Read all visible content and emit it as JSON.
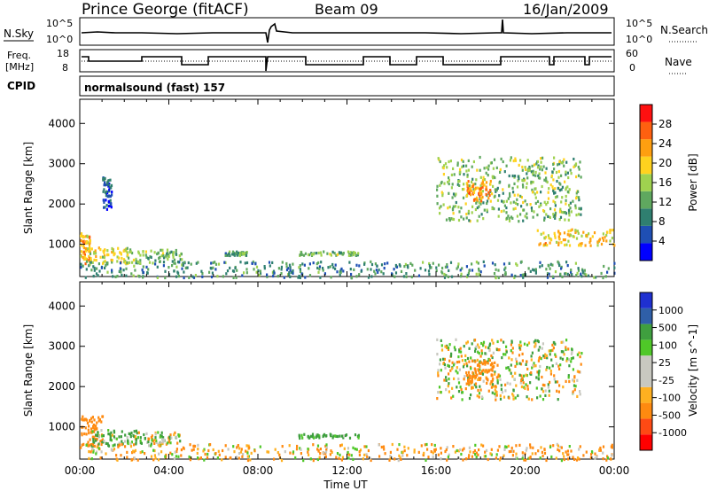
{
  "header": {
    "title": "Prince George (fitACF)",
    "beam": "Beam 09",
    "date": "16/Jan/2009"
  },
  "top_panels": {
    "nsky_label": "N.Sky",
    "nsky_ticks": [
      "10^5",
      "10^0"
    ],
    "nsearch_label": "N.Search",
    "nsearch_ticks": [
      "10^5",
      "10^0"
    ],
    "freq_label_1": "Freq.",
    "freq_label_2": "[MHz]",
    "freq_ticks": [
      "18",
      "8"
    ],
    "nave_label": "Nave",
    "nave_ticks": [
      "60",
      "0"
    ],
    "cpid_label": "CPID",
    "cpid_text": "normalsound (fast) 157"
  },
  "colors": {
    "power_scale": [
      "#0000ff",
      "#1f4fb4",
      "#2f7f70",
      "#5fa85f",
      "#9fd24f",
      "#ffd21f",
      "#ff9f10",
      "#ff6010",
      "#ff1010"
    ],
    "velocity_scale": [
      "#ff0000",
      "#ff4a14",
      "#ff8a10",
      "#ffb020",
      "#c8c8c0",
      "#c8c8c0",
      "#4fc828",
      "#3f9f3f",
      "#2f5fa8",
      "#1f30d0"
    ]
  },
  "chart_data": [
    {
      "type": "heatmap",
      "panel": "power",
      "ylabel": "Slant Range [km]",
      "yticks": [
        "1000",
        "2000",
        "3000",
        "4000"
      ],
      "ylim": [
        200,
        4600
      ],
      "xlim": [
        0,
        24
      ],
      "colorbar_label": "Power [dB]",
      "colorbar_ticks": [
        "4",
        "8",
        "12",
        "16",
        "20",
        "24",
        "28"
      ],
      "colorbar_range": [
        0,
        32
      ],
      "regions": [
        {
          "t0": 0.0,
          "t1": 0.45,
          "r0": 550,
          "r1": 1300,
          "value": 22
        },
        {
          "t0": 0.2,
          "t1": 2.2,
          "r0": 550,
          "r1": 950,
          "value": 18
        },
        {
          "t0": 2.2,
          "t1": 4.6,
          "r0": 550,
          "r1": 900,
          "value": 14
        },
        {
          "t0": 1.0,
          "t1": 1.4,
          "r0": 1900,
          "r1": 2700,
          "value": 6
        },
        {
          "t0": 6.5,
          "t1": 7.5,
          "r0": 750,
          "r1": 850,
          "value": 12
        },
        {
          "t0": 9.8,
          "t1": 12.5,
          "r0": 750,
          "r1": 850,
          "value": 14
        },
        {
          "t0": 16.0,
          "t1": 22.5,
          "r0": 1600,
          "r1": 3200,
          "value": 14
        },
        {
          "t0": 17.3,
          "t1": 18.5,
          "r0": 2100,
          "r1": 2600,
          "value": 24
        },
        {
          "t0": 20.5,
          "t1": 24.0,
          "r0": 1000,
          "r1": 1400,
          "value": 20
        },
        {
          "t0": 0.0,
          "t1": 24.0,
          "r0": 200,
          "r1": 600,
          "value": 10
        }
      ]
    },
    {
      "type": "heatmap",
      "panel": "velocity",
      "ylabel": "Slant Range [km]",
      "yticks": [
        "1000",
        "2000",
        "3000",
        "4000"
      ],
      "ylim": [
        200,
        4600
      ],
      "xlim": [
        0,
        24
      ],
      "xticks": [
        "00:00",
        "04:00",
        "08:00",
        "12:00",
        "16:00",
        "20:00",
        "00:00"
      ],
      "xlabel": "Time UT",
      "colorbar_label": "Velocity [m s^-1]",
      "colorbar_ticks": [
        "1000",
        "500",
        "100",
        "25",
        "-25",
        "-100",
        "-500",
        "-1000"
      ],
      "regions": [
        {
          "t0": 0.0,
          "t1": 1.0,
          "r0": 550,
          "r1": 1300,
          "value": -300
        },
        {
          "t0": 0.5,
          "t1": 2.5,
          "r0": 550,
          "r1": 950,
          "value": 150
        },
        {
          "t0": 2.5,
          "t1": 4.5,
          "r0": 600,
          "r1": 900,
          "value": 0
        },
        {
          "t0": 9.8,
          "t1": 12.5,
          "r0": 750,
          "r1": 850,
          "value": 200
        },
        {
          "t0": 16.0,
          "t1": 22.5,
          "r0": 1700,
          "r1": 3200,
          "value": 0
        },
        {
          "t0": 17.3,
          "t1": 18.8,
          "r0": 2100,
          "r1": 2700,
          "value": -300
        },
        {
          "t0": 0.0,
          "t1": 24.0,
          "r0": 200,
          "r1": 600,
          "value": -100
        }
      ]
    }
  ]
}
